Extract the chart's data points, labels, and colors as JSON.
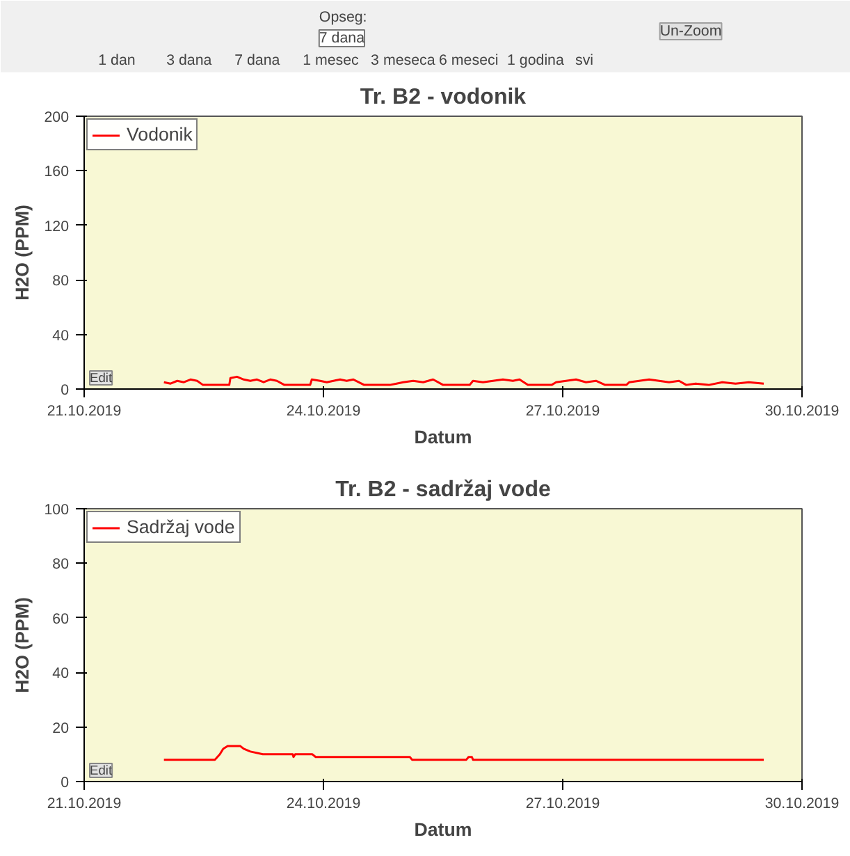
{
  "chart_data": [
    {
      "type": "other",
      "annotations": [
        "Opseg:",
        "7 dana",
        "1 dan",
        "3 dana",
        "7 dana",
        "1 mesec",
        "3 meseca",
        "6 meseci",
        "1 godina",
        "svi",
        "Un-Zoom"
      ]
    },
    {
      "type": "line",
      "title": "Tr. B2 - vodonik",
      "xlabel": "Datum",
      "ylabel": "H2O (PPM)",
      "legend": "top left",
      "grid": false,
      "annotations": [
        "Edit"
      ],
      "xlim": [
        "2019-10-21",
        "2019-10-30"
      ],
      "xticks": [
        {
          "value": "2019-10-21",
          "label": "21.10.2019"
        },
        {
          "value": "2019-10-24",
          "label": "24.10.2019"
        },
        {
          "value": "2019-10-27",
          "label": "27.10.2019"
        },
        {
          "value": "2019-10-30",
          "label": "30.10.2019"
        }
      ],
      "ylim": [
        0,
        200
      ],
      "yticks": [
        0,
        40,
        80,
        120,
        160,
        200
      ],
      "series": [
        {
          "name": "Vodonik",
          "color": "#ff0000",
          "x": [
            "2019-10-22T00:00",
            "2019-10-22T02:00",
            "2019-10-22T04:00",
            "2019-10-22T06:00",
            "2019-10-22T08:00",
            "2019-10-22T10:00",
            "2019-10-22T11:45",
            "2019-10-22T19:40",
            "2019-10-22T20:00",
            "2019-10-22T22:00",
            "2019-10-23T00:00",
            "2019-10-23T02:00",
            "2019-10-23T04:00",
            "2019-10-23T06:00",
            "2019-10-23T08:00",
            "2019-10-23T10:00",
            "2019-10-23T12:15",
            "2019-10-23T20:00",
            "2019-10-23T20:30",
            "2019-10-23T23:00",
            "2019-10-24T01:00",
            "2019-10-24T03:00",
            "2019-10-24T05:00",
            "2019-10-24T07:00",
            "2019-10-24T09:00",
            "2019-10-24T12:15",
            "2019-10-24T20:00",
            "2019-10-24T22:00",
            "2019-10-25T00:00",
            "2019-10-25T03:00",
            "2019-10-25T06:00",
            "2019-10-25T09:00",
            "2019-10-25T12:00",
            "2019-10-25T20:00",
            "2019-10-25T21:00",
            "2019-10-26T00:00",
            "2019-10-26T03:00",
            "2019-10-26T06:00",
            "2019-10-26T09:00",
            "2019-10-26T11:00",
            "2019-10-26T13:30",
            "2019-10-26T20:40",
            "2019-10-26T22:00",
            "2019-10-27T01:00",
            "2019-10-27T04:00",
            "2019-10-27T07:00",
            "2019-10-27T10:00",
            "2019-10-27T12:45",
            "2019-10-27T19:10",
            "2019-10-27T20:00",
            "2019-10-27T23:00",
            "2019-10-28T02:00",
            "2019-10-28T05:00",
            "2019-10-28T08:00",
            "2019-10-28T11:00",
            "2019-10-28T13:10",
            "2019-10-28T16:00",
            "2019-10-28T20:00",
            "2019-10-29T00:00",
            "2019-10-29T04:00",
            "2019-10-29T08:00",
            "2019-10-29T12:30"
          ],
          "values": [
            5,
            4,
            6,
            5,
            7,
            6,
            3,
            3,
            8,
            9,
            7,
            6,
            7,
            5,
            7,
            6,
            3,
            3,
            7,
            6,
            5,
            6,
            7,
            6,
            7,
            3,
            3,
            4,
            5,
            6,
            5,
            7,
            3,
            3,
            6,
            5,
            6,
            7,
            6,
            7,
            3,
            3,
            5,
            6,
            7,
            5,
            6,
            3,
            3,
            5,
            6,
            7,
            6,
            5,
            6,
            3,
            4,
            3,
            5,
            4,
            5,
            4
          ]
        }
      ]
    },
    {
      "type": "line",
      "title": "Tr. B2 - sadržaj vode",
      "xlabel": "Datum",
      "ylabel": "H2O (PPM)",
      "legend": "top left",
      "grid": false,
      "annotations": [
        "Edit"
      ],
      "xlim": [
        "2019-10-21",
        "2019-10-30"
      ],
      "xticks": [
        {
          "value": "2019-10-21",
          "label": "21.10.2019"
        },
        {
          "value": "2019-10-24",
          "label": "24.10.2019"
        },
        {
          "value": "2019-10-27",
          "label": "27.10.2019"
        },
        {
          "value": "2019-10-30",
          "label": "30.10.2019"
        }
      ],
      "ylim": [
        0,
        100
      ],
      "yticks": [
        0,
        20,
        40,
        60,
        80,
        100
      ],
      "series": [
        {
          "name": "Sadržaj vode",
          "color": "#ff0000",
          "x": [
            "2019-10-22T00:00",
            "2019-10-22T15:20",
            "2019-10-22T16:50",
            "2019-10-22T17:50",
            "2019-10-22T19:10",
            "2019-10-22T23:00",
            "2019-10-23T00:00",
            "2019-10-23T02:00",
            "2019-10-23T05:45",
            "2019-10-23T14:45",
            "2019-10-23T15:00",
            "2019-10-23T15:30",
            "2019-10-23T20:40",
            "2019-10-23T21:40",
            "2019-10-25T02:00",
            "2019-10-25T02:40",
            "2019-10-25T19:00",
            "2019-10-25T19:40",
            "2019-10-25T20:40",
            "2019-10-25T21:00",
            "2019-10-29T12:30"
          ],
          "values": [
            8,
            8,
            10,
            12,
            13,
            13,
            12,
            11,
            10,
            10,
            9,
            10,
            10,
            9,
            9,
            8,
            8,
            9,
            9,
            8,
            8
          ]
        }
      ]
    }
  ]
}
